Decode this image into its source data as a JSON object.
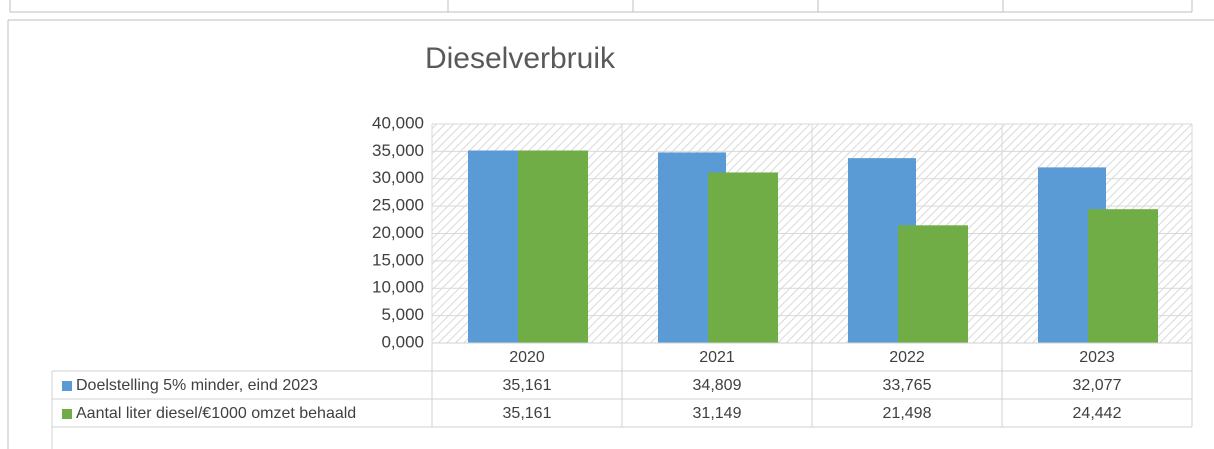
{
  "chart_data": {
    "type": "bar",
    "title": "Dieselverbruik",
    "categories": [
      "2020",
      "2021",
      "2022",
      "2023"
    ],
    "series": [
      {
        "name": "Doelstelling 5% minder, eind 2023",
        "color": "#5b9bd5",
        "values": [
          35.161,
          34.809,
          33.765,
          32.077
        ],
        "value_labels": [
          "35,161",
          "34,809",
          "33,765",
          "32,077"
        ]
      },
      {
        "name": "Aantal liter diesel/€1000 omzet behaald",
        "color": "#70ad47",
        "values": [
          35.161,
          31.149,
          21.498,
          24.442
        ],
        "value_labels": [
          "35,161",
          "31,149",
          "21,498",
          "24,442"
        ]
      }
    ],
    "ylim": [
      0,
      40
    ],
    "yticks": [
      {
        "value": 0,
        "label": "0,000"
      },
      {
        "value": 5,
        "label": "5,000"
      },
      {
        "value": 10,
        "label": "10,000"
      },
      {
        "value": 15,
        "label": "15,000"
      },
      {
        "value": 20,
        "label": "20,000"
      },
      {
        "value": 25,
        "label": "25,000"
      },
      {
        "value": 30,
        "label": "30,000"
      },
      {
        "value": 35,
        "label": "35,000"
      },
      {
        "value": 40,
        "label": "40,000"
      }
    ],
    "grid": true
  }
}
